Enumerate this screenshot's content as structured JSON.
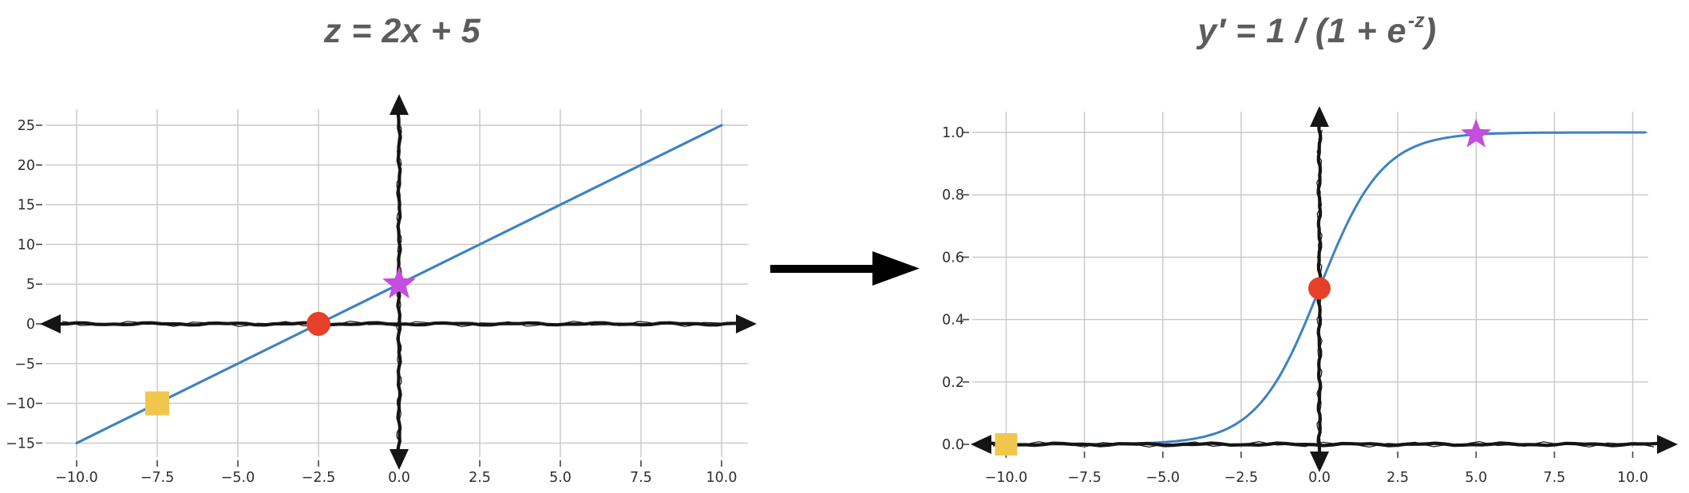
{
  "style": {
    "background": "#ffffff",
    "title_color": "#5c5c5c",
    "grid_color": "#c8c8c8",
    "axis_color": "#151515",
    "tick_label_color": "#2e2e2e"
  },
  "arrow": {
    "glyph": "right-arrow",
    "color": "#000000"
  },
  "chart_data": [
    {
      "id": "linear",
      "type": "line",
      "title": "z = 2x + 5",
      "title_pre": "z = 2x + 5",
      "title_sup": "",
      "title_post": "",
      "function": {
        "kind": "linear",
        "slope": 2,
        "intercept": 5
      },
      "x_range": [
        -10,
        10
      ],
      "xlim": [
        -11.1,
        11.1
      ],
      "ylim": [
        -16.8,
        27
      ],
      "grid": true,
      "x_ticks": [
        -10,
        -7.5,
        -5,
        -2.5,
        0,
        2.5,
        5,
        7.5,
        10
      ],
      "x_tick_labels": [
        "−10.0",
        "−7.5",
        "−5.0",
        "−2.5",
        "0.0",
        "2.5",
        "5.0",
        "7.5",
        "10.0"
      ],
      "y_ticks": [
        -15,
        -10,
        -5,
        0,
        5,
        10,
        15,
        20,
        25
      ],
      "y_tick_labels": [
        "−15",
        "−10",
        "−5",
        "0",
        "5",
        "10",
        "15",
        "20",
        "25"
      ],
      "line_color": "#3d82c4",
      "points": [
        {
          "x": -10,
          "z": -15
        },
        {
          "x": 10,
          "z": 25
        }
      ],
      "markers": [
        {
          "shape": "square",
          "x": -7.5,
          "y": -10,
          "color": "#f1c64d"
        },
        {
          "shape": "circle",
          "x": -2.5,
          "y": 0,
          "color": "#e6402a"
        },
        {
          "shape": "star",
          "x": 0,
          "y": 5,
          "color": "#c44edd"
        }
      ],
      "axes": {
        "h_axis_at": 0,
        "v_axis_at": 0,
        "arrowheads": true,
        "hand_drawn": true
      }
    },
    {
      "id": "sigmoid",
      "type": "line",
      "title": "y′ = 1 / (1 + e⁻ᶻ)",
      "title_pre": "y′ = 1 / (1 + e",
      "title_sup": "-z",
      "title_post": ")",
      "function": {
        "kind": "sigmoid"
      },
      "x_range": [
        -10.4,
        10.45
      ],
      "xlim": [
        -11.1,
        11.4
      ],
      "ylim": [
        -0.013,
        1.066
      ],
      "grid": true,
      "x_ticks": [
        -10,
        -7.5,
        -5,
        -2.5,
        0,
        2.5,
        5,
        7.5,
        10
      ],
      "x_tick_labels": [
        "−10.0",
        "−7.5",
        "−5.0",
        "−2.5",
        "0.0",
        "2.5",
        "5.0",
        "7.5",
        "10.0"
      ],
      "y_ticks": [
        0,
        0.2,
        0.4,
        0.6,
        0.8,
        1.0
      ],
      "y_tick_labels": [
        "0.0",
        "0.2",
        "0.4",
        "0.6",
        "0.8",
        "1.0"
      ],
      "line_color": "#3d82c4",
      "points": [
        {
          "z": -10,
          "y": 0.0
        },
        {
          "z": -5,
          "y": 0.0067
        },
        {
          "z": -2.5,
          "y": 0.0759
        },
        {
          "z": 0,
          "y": 0.5
        },
        {
          "z": 2.5,
          "y": 0.9241
        },
        {
          "z": 5,
          "y": 0.9933
        },
        {
          "z": 10,
          "y": 1.0
        }
      ],
      "markers": [
        {
          "shape": "square",
          "x": -10,
          "y": 0.0,
          "color": "#f1c64d"
        },
        {
          "shape": "circle",
          "x": 0,
          "y": 0.5,
          "color": "#e6402a"
        },
        {
          "shape": "star",
          "x": 5,
          "y": 0.9933,
          "color": "#c44edd"
        }
      ],
      "axes": {
        "h_axis_at": 0,
        "v_axis_at": 0,
        "arrowheads": true,
        "hand_drawn": true
      }
    }
  ]
}
